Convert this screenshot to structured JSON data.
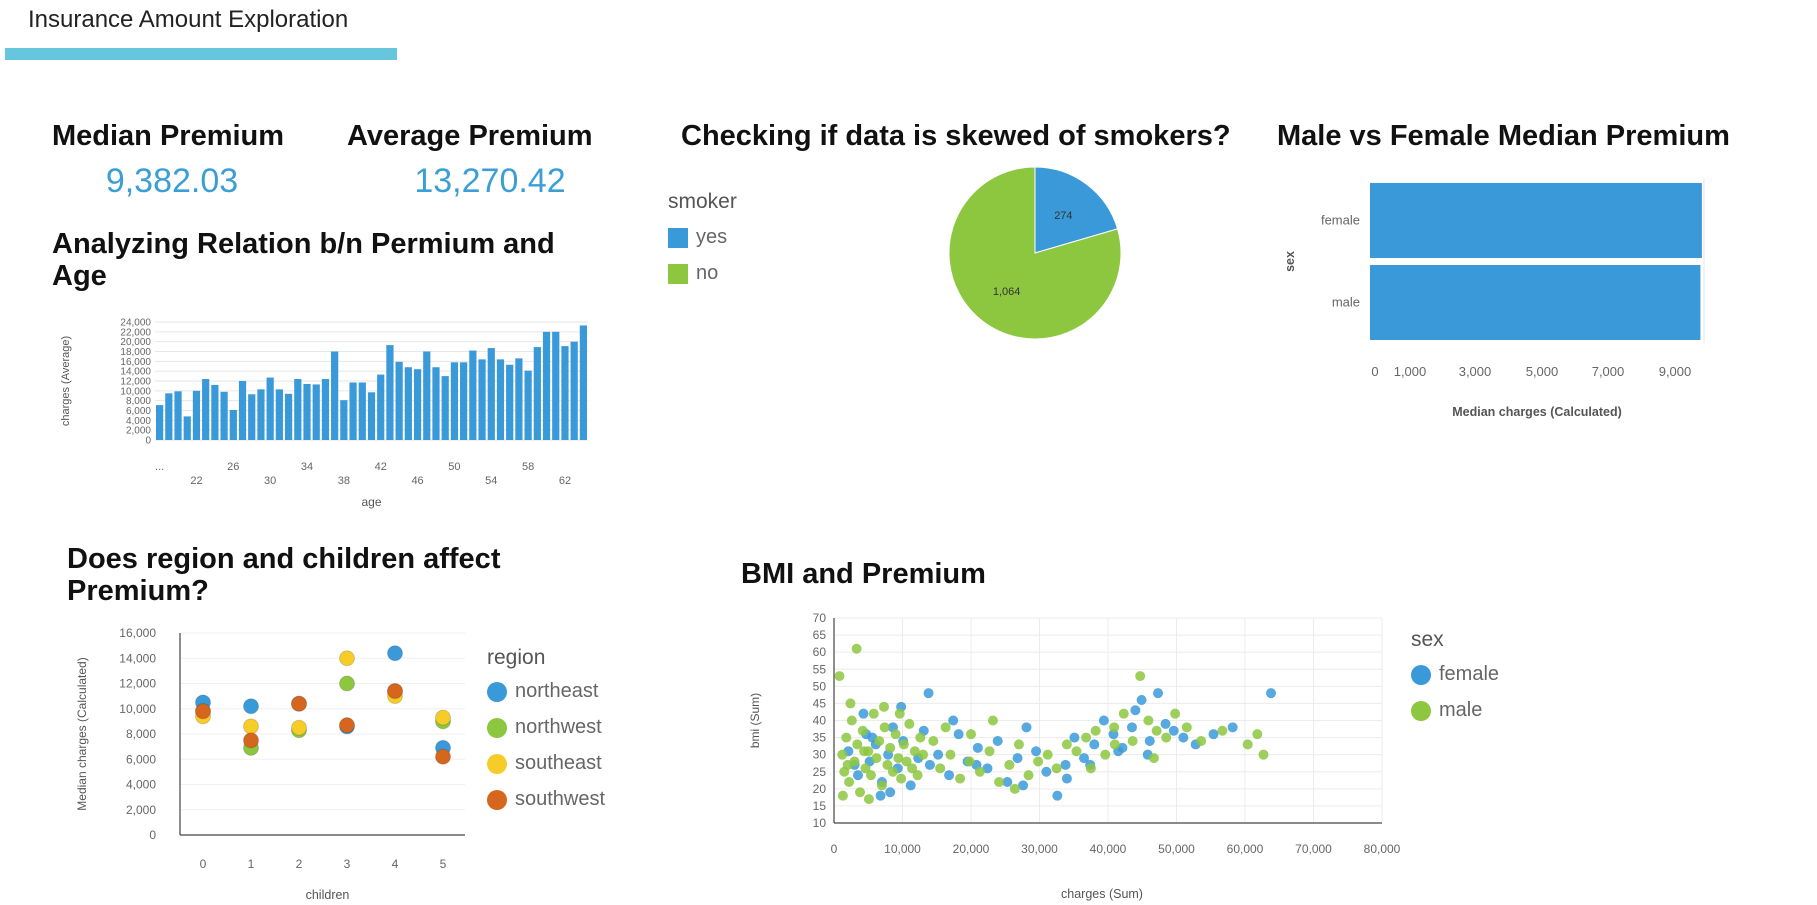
{
  "dashboard": {
    "title": "Insurance Amount Exploration",
    "accent": "#66c6dd"
  },
  "kpis": {
    "median": {
      "label": "Median Premium",
      "value": "9,382.03"
    },
    "average": {
      "label": "Average Premium",
      "value": "13,270.42"
    }
  },
  "titles": {
    "age": "Analyzing Relation b/n Permium and Age",
    "smoker": "Checking if data is skewed of smokers?",
    "sex": "Male vs Female Median Premium",
    "region": "Does region and children affect Premium?",
    "bmi": "BMI and Premium"
  },
  "legends": {
    "smoker": {
      "title": "smoker",
      "items": [
        {
          "label": "yes",
          "color": "#3a9ad9"
        },
        {
          "label": "no",
          "color": "#8dc740"
        }
      ]
    },
    "region": {
      "title": "region",
      "items": [
        {
          "label": "northeast",
          "color": "#3a9ad9"
        },
        {
          "label": "northwest",
          "color": "#8dc740"
        },
        {
          "label": "southeast",
          "color": "#f5cc28"
        },
        {
          "label": "southwest",
          "color": "#d6661e"
        }
      ]
    },
    "sex": {
      "title": "sex",
      "items": [
        {
          "label": "female",
          "color": "#3a9ad9"
        },
        {
          "label": "male",
          "color": "#8dc740"
        }
      ]
    }
  },
  "chart_data": [
    {
      "id": "age",
      "type": "bar",
      "xlabel": "age",
      "ylabel": "charges (Average)",
      "ylim": [
        0,
        24000
      ],
      "yticks": [
        0,
        2000,
        4000,
        6000,
        8000,
        10000,
        12000,
        14000,
        16000,
        18000,
        20000,
        22000,
        24000
      ],
      "ytick_labels": [
        "0",
        "2,000",
        "4,000",
        "6,000",
        "8,000",
        "10,000",
        "12,000",
        "14,000",
        "16,000",
        "18,000",
        "20,000",
        "22,000",
        "24,000"
      ],
      "x_tick_labels_upper": [
        "...",
        "26",
        "34",
        "42",
        "50",
        "58"
      ],
      "x_tick_labels_lower": [
        "22",
        "30",
        "38",
        "46",
        "54",
        "62"
      ],
      "categories": [
        "18",
        "19",
        "20",
        "21",
        "22",
        "23",
        "24",
        "25",
        "26",
        "27",
        "28",
        "29",
        "30",
        "31",
        "32",
        "33",
        "34",
        "35",
        "36",
        "37",
        "38",
        "39",
        "40",
        "41",
        "42",
        "43",
        "44",
        "45",
        "46",
        "47",
        "48",
        "49",
        "50",
        "51",
        "52",
        "53",
        "54",
        "55",
        "56",
        "57",
        "58",
        "59",
        "60",
        "61",
        "62",
        "63",
        "64"
      ],
      "values": [
        7100,
        9500,
        9900,
        4800,
        10000,
        12400,
        11200,
        9800,
        6100,
        12000,
        9300,
        10300,
        12700,
        10300,
        9400,
        12400,
        11400,
        11300,
        12400,
        18000,
        8100,
        11700,
        11700,
        9700,
        13300,
        19300,
        15900,
        14800,
        14400,
        18000,
        14800,
        13000,
        15800,
        15800,
        18200,
        16400,
        18700,
        16400,
        15300,
        16600,
        14100,
        18900,
        22000,
        22000,
        19100,
        20000,
        23300
      ],
      "color": "#3a9ad9",
      "grid": true
    },
    {
      "id": "smoker",
      "type": "pie",
      "categories": [
        "yes",
        "no"
      ],
      "values": [
        274,
        1064
      ],
      "data_labels": [
        "274",
        "1,064"
      ],
      "colors": [
        "#3a9ad9",
        "#8dc740"
      ],
      "legend": "left"
    },
    {
      "id": "sex",
      "type": "bar",
      "orientation": "horizontal",
      "xlabel": "Median charges (Calculated)",
      "ylabel": "sex",
      "categories": [
        "female",
        "male"
      ],
      "values": [
        9412,
        9370
      ],
      "xlim": [
        0,
        9500
      ],
      "xticks": [
        0,
        1000,
        3000,
        5000,
        7000,
        9000
      ],
      "xtick_labels": [
        "0",
        "1,000",
        "3,000",
        "5,000",
        "7,000",
        "9,000"
      ],
      "color": "#3a9ad9"
    },
    {
      "id": "region",
      "type": "scatter",
      "xlabel": "children",
      "ylabel": "Median charges (Calculated)",
      "x": [
        0,
        1,
        2,
        3,
        4,
        5
      ],
      "ylim": [
        0,
        16000
      ],
      "yticks": [
        0,
        2000,
        4000,
        6000,
        8000,
        10000,
        12000,
        14000,
        16000
      ],
      "ytick_labels": [
        "0",
        "2,000",
        "4,000",
        "6,000",
        "8,000",
        "10,000",
        "12,000",
        "14,000",
        "16,000"
      ],
      "legend": "right",
      "series": [
        {
          "name": "northeast",
          "color": "#3a9ad9",
          "values": [
            10500,
            10200,
            10400,
            8600,
            14400,
            6900
          ]
        },
        {
          "name": "northwest",
          "color": "#8dc740",
          "values": [
            9800,
            6900,
            8300,
            12000,
            11400,
            9000
          ]
        },
        {
          "name": "southeast",
          "color": "#f5cc28",
          "values": [
            9400,
            8600,
            8500,
            14000,
            11000,
            9300
          ]
        },
        {
          "name": "southwest",
          "color": "#d6661e",
          "values": [
            9800,
            7500,
            10400,
            8700,
            11400,
            6200
          ]
        }
      ]
    },
    {
      "id": "bmi",
      "type": "scatter",
      "xlabel": "charges (Sum)",
      "ylabel": "bmi (Sum)",
      "xlim": [
        0,
        80000
      ],
      "ylim": [
        10,
        70
      ],
      "xticks": [
        0,
        10000,
        20000,
        30000,
        40000,
        50000,
        60000,
        70000,
        80000
      ],
      "xtick_labels": [
        "0",
        "10,000",
        "20,000",
        "30,000",
        "40,000",
        "50,000",
        "60,000",
        "70,000",
        "80,000"
      ],
      "yticks": [
        10,
        15,
        20,
        25,
        30,
        35,
        40,
        45,
        50,
        55,
        60,
        65,
        70
      ],
      "ytick_labels": [
        "10",
        "15",
        "20",
        "25",
        "30",
        "35",
        "40",
        "45",
        "50",
        "55",
        "60",
        "65",
        "70"
      ],
      "legend": "right",
      "grid": true,
      "series": [
        {
          "name": "female",
          "color": "#3a9ad9",
          "points": [
            [
              2100,
              31
            ],
            [
              3500,
              24
            ],
            [
              4700,
              36
            ],
            [
              5200,
              28
            ],
            [
              6100,
              33
            ],
            [
              7000,
              22
            ],
            [
              7900,
              30
            ],
            [
              8600,
              38
            ],
            [
              9300,
              26
            ],
            [
              10100,
              34
            ],
            [
              11200,
              21
            ],
            [
              12300,
              29
            ],
            [
              13100,
              37
            ],
            [
              14000,
              27
            ],
            [
              4300,
              42
            ],
            [
              6800,
              18
            ],
            [
              9800,
              44
            ],
            [
              5600,
              35
            ],
            [
              8200,
              19
            ],
            [
              3000,
              27
            ],
            [
              15200,
              30
            ],
            [
              16800,
              24
            ],
            [
              18200,
              36
            ],
            [
              19500,
              28
            ],
            [
              21000,
              32
            ],
            [
              22400,
              26
            ],
            [
              23900,
              34
            ],
            [
              25300,
              22
            ],
            [
              26800,
              29
            ],
            [
              28100,
              38
            ],
            [
              29500,
              31
            ],
            [
              31000,
              25
            ],
            [
              32600,
              18
            ],
            [
              33800,
              27
            ],
            [
              35100,
              35
            ],
            [
              36500,
              29
            ],
            [
              38000,
              33
            ],
            [
              39400,
              40
            ],
            [
              40800,
              36
            ],
            [
              42100,
              32
            ],
            [
              43500,
              38
            ],
            [
              44900,
              46
            ],
            [
              46100,
              34
            ],
            [
              47300,
              48
            ],
            [
              48400,
              39
            ],
            [
              49600,
              37
            ],
            [
              51000,
              35
            ],
            [
              52800,
              33
            ],
            [
              55400,
              36
            ],
            [
              58200,
              38
            ],
            [
              63800,
              48
            ],
            [
              37400,
              27
            ],
            [
              41500,
              31
            ],
            [
              44000,
              43
            ],
            [
              45800,
              30
            ],
            [
              34000,
              23
            ],
            [
              27600,
              21
            ],
            [
              20800,
              27
            ],
            [
              17400,
              40
            ],
            [
              13800,
              48
            ]
          ]
        },
        {
          "name": "male",
          "color": "#8dc740",
          "points": [
            [
              1200,
              30
            ],
            [
              1500,
              25
            ],
            [
              1800,
              35
            ],
            [
              2200,
              22
            ],
            [
              2600,
              40
            ],
            [
              3000,
              28
            ],
            [
              3400,
              33
            ],
            [
              3800,
              19
            ],
            [
              4200,
              37
            ],
            [
              4600,
              26
            ],
            [
              5000,
              31
            ],
            [
              5400,
              24
            ],
            [
              5800,
              42
            ],
            [
              6200,
              29
            ],
            [
              6600,
              34
            ],
            [
              7000,
              21
            ],
            [
              7400,
              38
            ],
            [
              7800,
              27
            ],
            [
              8200,
              32
            ],
            [
              8600,
              25
            ],
            [
              9000,
              36
            ],
            [
              9400,
              29
            ],
            [
              9800,
              23
            ],
            [
              10200,
              33
            ],
            [
              10600,
              28
            ],
            [
              11000,
              39
            ],
            [
              11400,
              26
            ],
            [
              11800,
              31
            ],
            [
              12200,
              24
            ],
            [
              12600,
              35
            ],
            [
              13000,
              30
            ],
            [
              1300,
              18
            ],
            [
              2400,
              45
            ],
            [
              3300,
              61
            ],
            [
              800,
              53
            ],
            [
              5100,
              17
            ],
            [
              7300,
              44
            ],
            [
              9600,
              42
            ],
            [
              2000,
              27
            ],
            [
              4400,
              31
            ],
            [
              15500,
              26
            ],
            [
              17000,
              30
            ],
            [
              18400,
              23
            ],
            [
              19800,
              28
            ],
            [
              21300,
              25
            ],
            [
              22700,
              31
            ],
            [
              24100,
              22
            ],
            [
              25600,
              27
            ],
            [
              27000,
              33
            ],
            [
              28400,
              24
            ],
            [
              14500,
              34
            ],
            [
              16300,
              38
            ],
            [
              20000,
              36
            ],
            [
              23200,
              40
            ],
            [
              26400,
              20
            ],
            [
              29800,
              28
            ],
            [
              31200,
              30
            ],
            [
              32500,
              26
            ],
            [
              34000,
              33
            ],
            [
              35400,
              31
            ],
            [
              36800,
              35
            ],
            [
              38200,
              37
            ],
            [
              39600,
              30
            ],
            [
              40900,
              38
            ],
            [
              42300,
              42
            ],
            [
              43600,
              34
            ],
            [
              44700,
              53
            ],
            [
              45900,
              40
            ],
            [
              47100,
              37
            ],
            [
              48500,
              35
            ],
            [
              49800,
              42
            ],
            [
              51500,
              38
            ],
            [
              53600,
              34
            ],
            [
              56700,
              37
            ],
            [
              60400,
              33
            ],
            [
              61800,
              36
            ],
            [
              62700,
              30
            ],
            [
              37500,
              26
            ],
            [
              41000,
              33
            ],
            [
              46700,
              29
            ]
          ]
        }
      ]
    }
  ]
}
